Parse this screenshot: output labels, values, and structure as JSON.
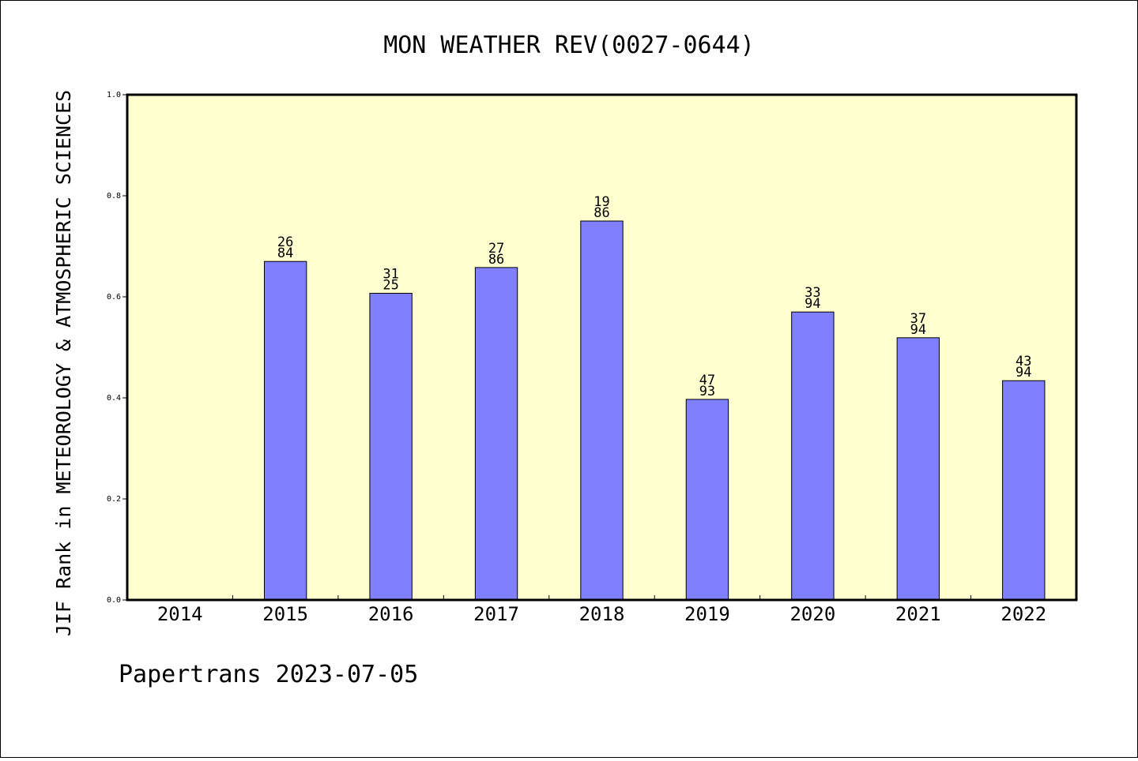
{
  "chart_data": {
    "type": "bar",
    "title": "MON WEATHER REV(0027-0644)",
    "ylabel": "JIF Rank in METEOROLOGY & ATMOSPHERIC SCIENCES",
    "xlabel": "",
    "categories": [
      "2014",
      "2015",
      "2016",
      "2017",
      "2018",
      "2019",
      "2020",
      "2021",
      "2022"
    ],
    "values": [
      null,
      0.67,
      0.607,
      0.658,
      0.75,
      0.397,
      0.57,
      0.519,
      0.434
    ],
    "labels": [
      null,
      [
        "26",
        "84"
      ],
      [
        "31",
        "25"
      ],
      [
        "27",
        "86"
      ],
      [
        "19",
        "86"
      ],
      [
        "47",
        "93"
      ],
      [
        "33",
        "94"
      ],
      [
        "37",
        "94"
      ],
      [
        "43",
        "94"
      ]
    ],
    "ylim": [
      0,
      1.0
    ],
    "yticks": [
      "0.0",
      "0.2",
      "0.4",
      "0.6",
      "0.8",
      "1.0"
    ],
    "grid": false,
    "colors": {
      "bar": "#8080ff",
      "plot_bg": "#ffffd0",
      "border": "#000000"
    }
  },
  "footer": {
    "text": "Papertrans 2023-07-05"
  }
}
